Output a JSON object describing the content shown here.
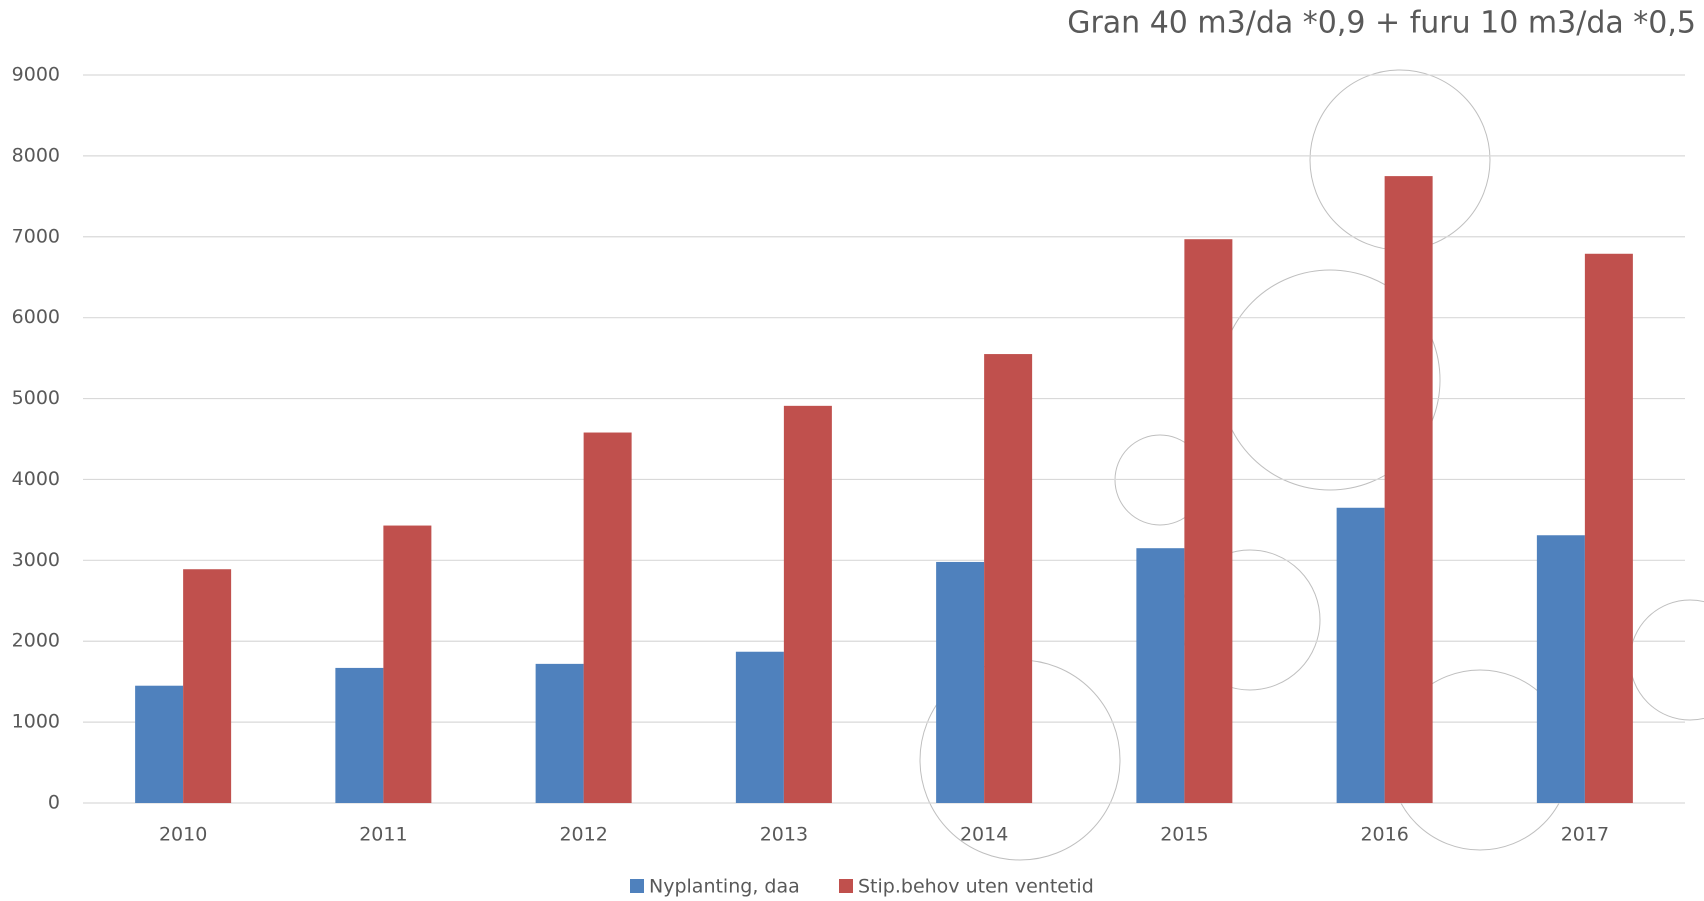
{
  "chart_data": {
    "type": "bar",
    "title": "Gran 40 m3/da *0,9 + furu 10 m3/da *0,5",
    "categories": [
      "2010",
      "2011",
      "2012",
      "2013",
      "2014",
      "2015",
      "2016",
      "2017"
    ],
    "series": [
      {
        "name": "Nyplanting, daa",
        "color": "#4f81bd",
        "values": [
          1450,
          1670,
          1720,
          1870,
          2980,
          3150,
          3650,
          3310
        ]
      },
      {
        "name": "Stip.behov uten ventetid",
        "color": "#c0504d",
        "values": [
          2890,
          3430,
          4580,
          4910,
          5550,
          6970,
          7750,
          6790
        ]
      }
    ],
    "ylim": [
      0,
      9000
    ],
    "yticks": [
      0,
      1000,
      2000,
      3000,
      4000,
      5000,
      6000,
      7000,
      8000,
      9000
    ],
    "grid": true,
    "legend": "bottom"
  }
}
